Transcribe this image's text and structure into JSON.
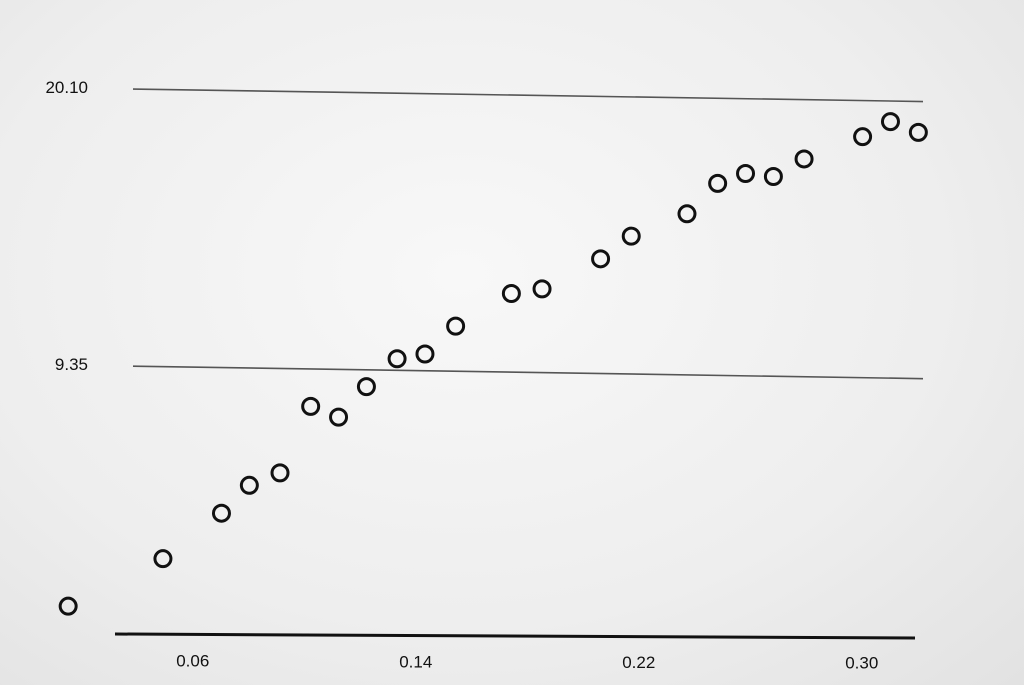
{
  "chart_data": {
    "type": "scatter",
    "title": "",
    "xlabel": "",
    "ylabel": "",
    "x_ticks": [
      "0.06",
      "0.14",
      "0.22",
      "0.30"
    ],
    "x_tick_values": [
      0.06,
      0.14,
      0.22,
      0.3
    ],
    "y_ticks": [
      "9.35",
      "20.10"
    ],
    "y_tick_values": [
      9.35,
      20.1
    ],
    "xlim": [
      0.0,
      0.32
    ],
    "ylim": [
      -1.1,
      20.1
    ],
    "grid": "horizontal",
    "legend": "none",
    "colors": {
      "marker": "#111111",
      "gridline": "#555555",
      "axis": "#111111"
    },
    "series": [
      {
        "marker": "hollow-circle",
        "points": [
          {
            "x": 0.011,
            "y": 0.0
          },
          {
            "x": 0.045,
            "y": 1.9
          },
          {
            "x": 0.066,
            "y": 3.7
          },
          {
            "x": 0.076,
            "y": 4.8
          },
          {
            "x": 0.087,
            "y": 5.3
          },
          {
            "x": 0.098,
            "y": 7.9
          },
          {
            "x": 0.108,
            "y": 7.5
          },
          {
            "x": 0.118,
            "y": 8.7
          },
          {
            "x": 0.129,
            "y": 9.8
          },
          {
            "x": 0.139,
            "y": 10.0
          },
          {
            "x": 0.15,
            "y": 11.1
          },
          {
            "x": 0.17,
            "y": 12.4
          },
          {
            "x": 0.181,
            "y": 12.6
          },
          {
            "x": 0.202,
            "y": 13.8
          },
          {
            "x": 0.213,
            "y": 14.7
          },
          {
            "x": 0.233,
            "y": 15.6
          },
          {
            "x": 0.244,
            "y": 16.8
          },
          {
            "x": 0.254,
            "y": 17.2
          },
          {
            "x": 0.264,
            "y": 17.1
          },
          {
            "x": 0.275,
            "y": 17.8
          },
          {
            "x": 0.296,
            "y": 18.7
          },
          {
            "x": 0.306,
            "y": 19.3
          },
          {
            "x": 0.316,
            "y": 18.9
          }
        ]
      }
    ]
  }
}
